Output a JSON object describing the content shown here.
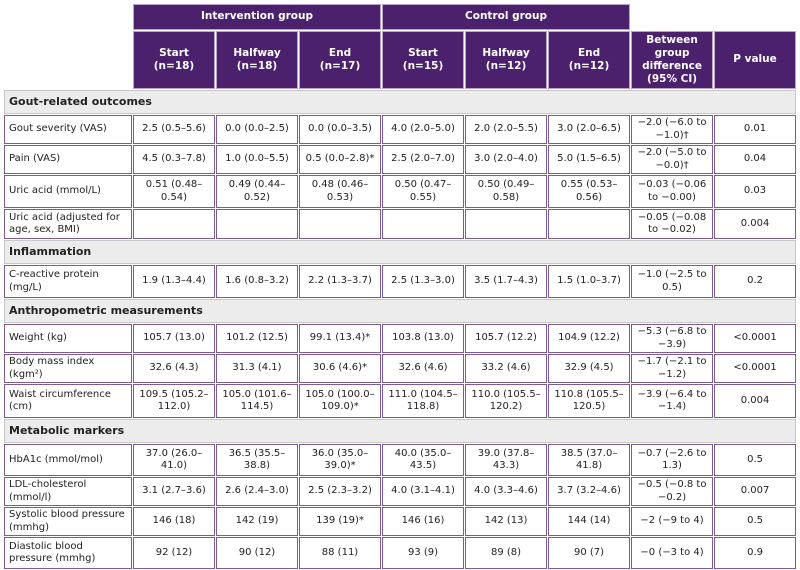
{
  "table": {
    "group_headers": [
      "Intervention group",
      "Control group"
    ],
    "columns": [
      {
        "label": "Start",
        "n": "(n=18)"
      },
      {
        "label": "Halfway",
        "n": "(n=18)"
      },
      {
        "label": "End",
        "n": "(n=17)"
      },
      {
        "label": "Start",
        "n": "(n=15)"
      },
      {
        "label": "Halfway",
        "n": "(n=12)"
      },
      {
        "label": "End",
        "n": "(n=12)"
      },
      {
        "label": "Between group difference (95% CI)",
        "n": null
      },
      {
        "label": "P value",
        "n": null
      }
    ],
    "sections": [
      {
        "title": "Gout-related outcomes",
        "rows": [
          {
            "label": "Gout severity (VAS)",
            "cells": [
              "2.5 (0.5–5.6)",
              "0.0 (0.0–2.5)",
              "0.0 (0.0–3.5)",
              "4.0 (2.0–5.0)",
              "2.0 (2.0–5.5)",
              "3.0 (2.0–6.5)",
              "−2.0 (−6.0 to −1.0)†",
              "0.01"
            ]
          },
          {
            "label": "Pain (VAS)",
            "cells": [
              "4.5 (0.3–7.8)",
              "1.0 (0.0–5.5)",
              "0.5 (0.0–2.8)*",
              "2.5 (2.0–7.0)",
              "3.0 (2.0–4.0)",
              "5.0 (1.5–6.5)",
              "−2.0 (−5.0 to −0.0)†",
              "0.04"
            ]
          },
          {
            "label": "Uric acid (mmol/L)",
            "cells": [
              "0.51 (0.48–0.54)",
              "0.49 (0.44–0.52)",
              "0.48 (0.46–0.53)",
              "0.50 (0.47–0.55)",
              "0.50 (0.49–0.58)",
              "0.55 (0.53–0.56)",
              "−0.03 (−0.06 to −0.00)",
              "0.03"
            ]
          },
          {
            "label": "Uric acid (adjusted for age, sex, BMI)",
            "cells": [
              null,
              null,
              null,
              null,
              null,
              null,
              "−0.05 (−0.08 to −0.02)",
              "0.004"
            ]
          }
        ]
      },
      {
        "title": "Inflammation",
        "rows": [
          {
            "label": "C-reactive protein (mg/L)",
            "cells": [
              "1.9 (1.3–4.4)",
              "1.6 (0.8–3.2)",
              "2.2 (1.3–3.7)",
              "2.5 (1.3–3.0)",
              "3.5 (1.7–4.3)",
              "1.5 (1.0–3.7)",
              "−1.0 (−2.5 to 0.5)",
              "0.2"
            ]
          }
        ]
      },
      {
        "title": "Anthropometric measurements",
        "rows": [
          {
            "label": "Weight (kg)",
            "cells": [
              "105.7 (13.0)",
              "101.2 (12.5)",
              "99.1 (13.4)*",
              "103.8 (13.0)",
              "105.7 (12.2)",
              "104.9 (12.2)",
              "−5.3 (−6.8 to −3.9)",
              "<0.0001"
            ]
          },
          {
            "label": "Body mass index (kgm²)",
            "cells": [
              "32.6 (4.3)",
              "31.3 (4.1)",
              "30.6 (4.6)*",
              "32.6 (4.6)",
              "33.2 (4.6)",
              "32.9 (4.5)",
              "−1.7 (−2.1 to −1.2)",
              "<0.0001"
            ]
          },
          {
            "label": "Waist circumference (cm)",
            "cells": [
              "109.5 (105.2–112.0)",
              "105.0 (101.6–114.5)",
              "105.0 (100.0–109.0)*",
              "111.0 (104.5–118.8)",
              "110.0 (105.5–120.2)",
              "110.8 (105.5–120.5)",
              "−3.9 (−6.4 to −1.4)",
              "0.004"
            ]
          }
        ]
      },
      {
        "title": "Metabolic markers",
        "rows": [
          {
            "label": "HbA1c (mmol/mol)",
            "cells": [
              "37.0 (26.0–41.0)",
              "36.5 (35.5–38.8)",
              "36.0 (35.0–39.0)*",
              "40.0 (35.0–43.5)",
              "39.0 (37.8–43.3)",
              "38.5 (37.0–41.8)",
              "−0.7 (−2.6 to 1.3)",
              "0.5"
            ]
          },
          {
            "label": "LDL-cholesterol (mmol/l)",
            "cells": [
              "3.1 (2.7–3.6)",
              "2.6 (2.4–3.0)",
              "2.5 (2.3–3.2)",
              "4.0 (3.1–4.1)",
              "4.0 (3.3–4.6)",
              "3.7 (3.2–4.6)",
              "−0.5 (−0.8 to −0.2)",
              "0.007"
            ]
          },
          {
            "label": "Systolic blood pressure (mmhg)",
            "cells": [
              "146 (18)",
              "142 (19)",
              "139 (19)*",
              "146 (16)",
              "142 (13)",
              "144 (14)",
              "−2 (−9 to 4)",
              "0.5"
            ]
          },
          {
            "label": "Diastolic blood pressure (mmhg)",
            "cells": [
              "92 (12)",
              "90 (12)",
              "88 (11)",
              "93 (9)",
              "89 (8)",
              "90 (7)",
              "−0 (−3 to 4)",
              "0.9"
            ]
          }
        ]
      }
    ]
  }
}
